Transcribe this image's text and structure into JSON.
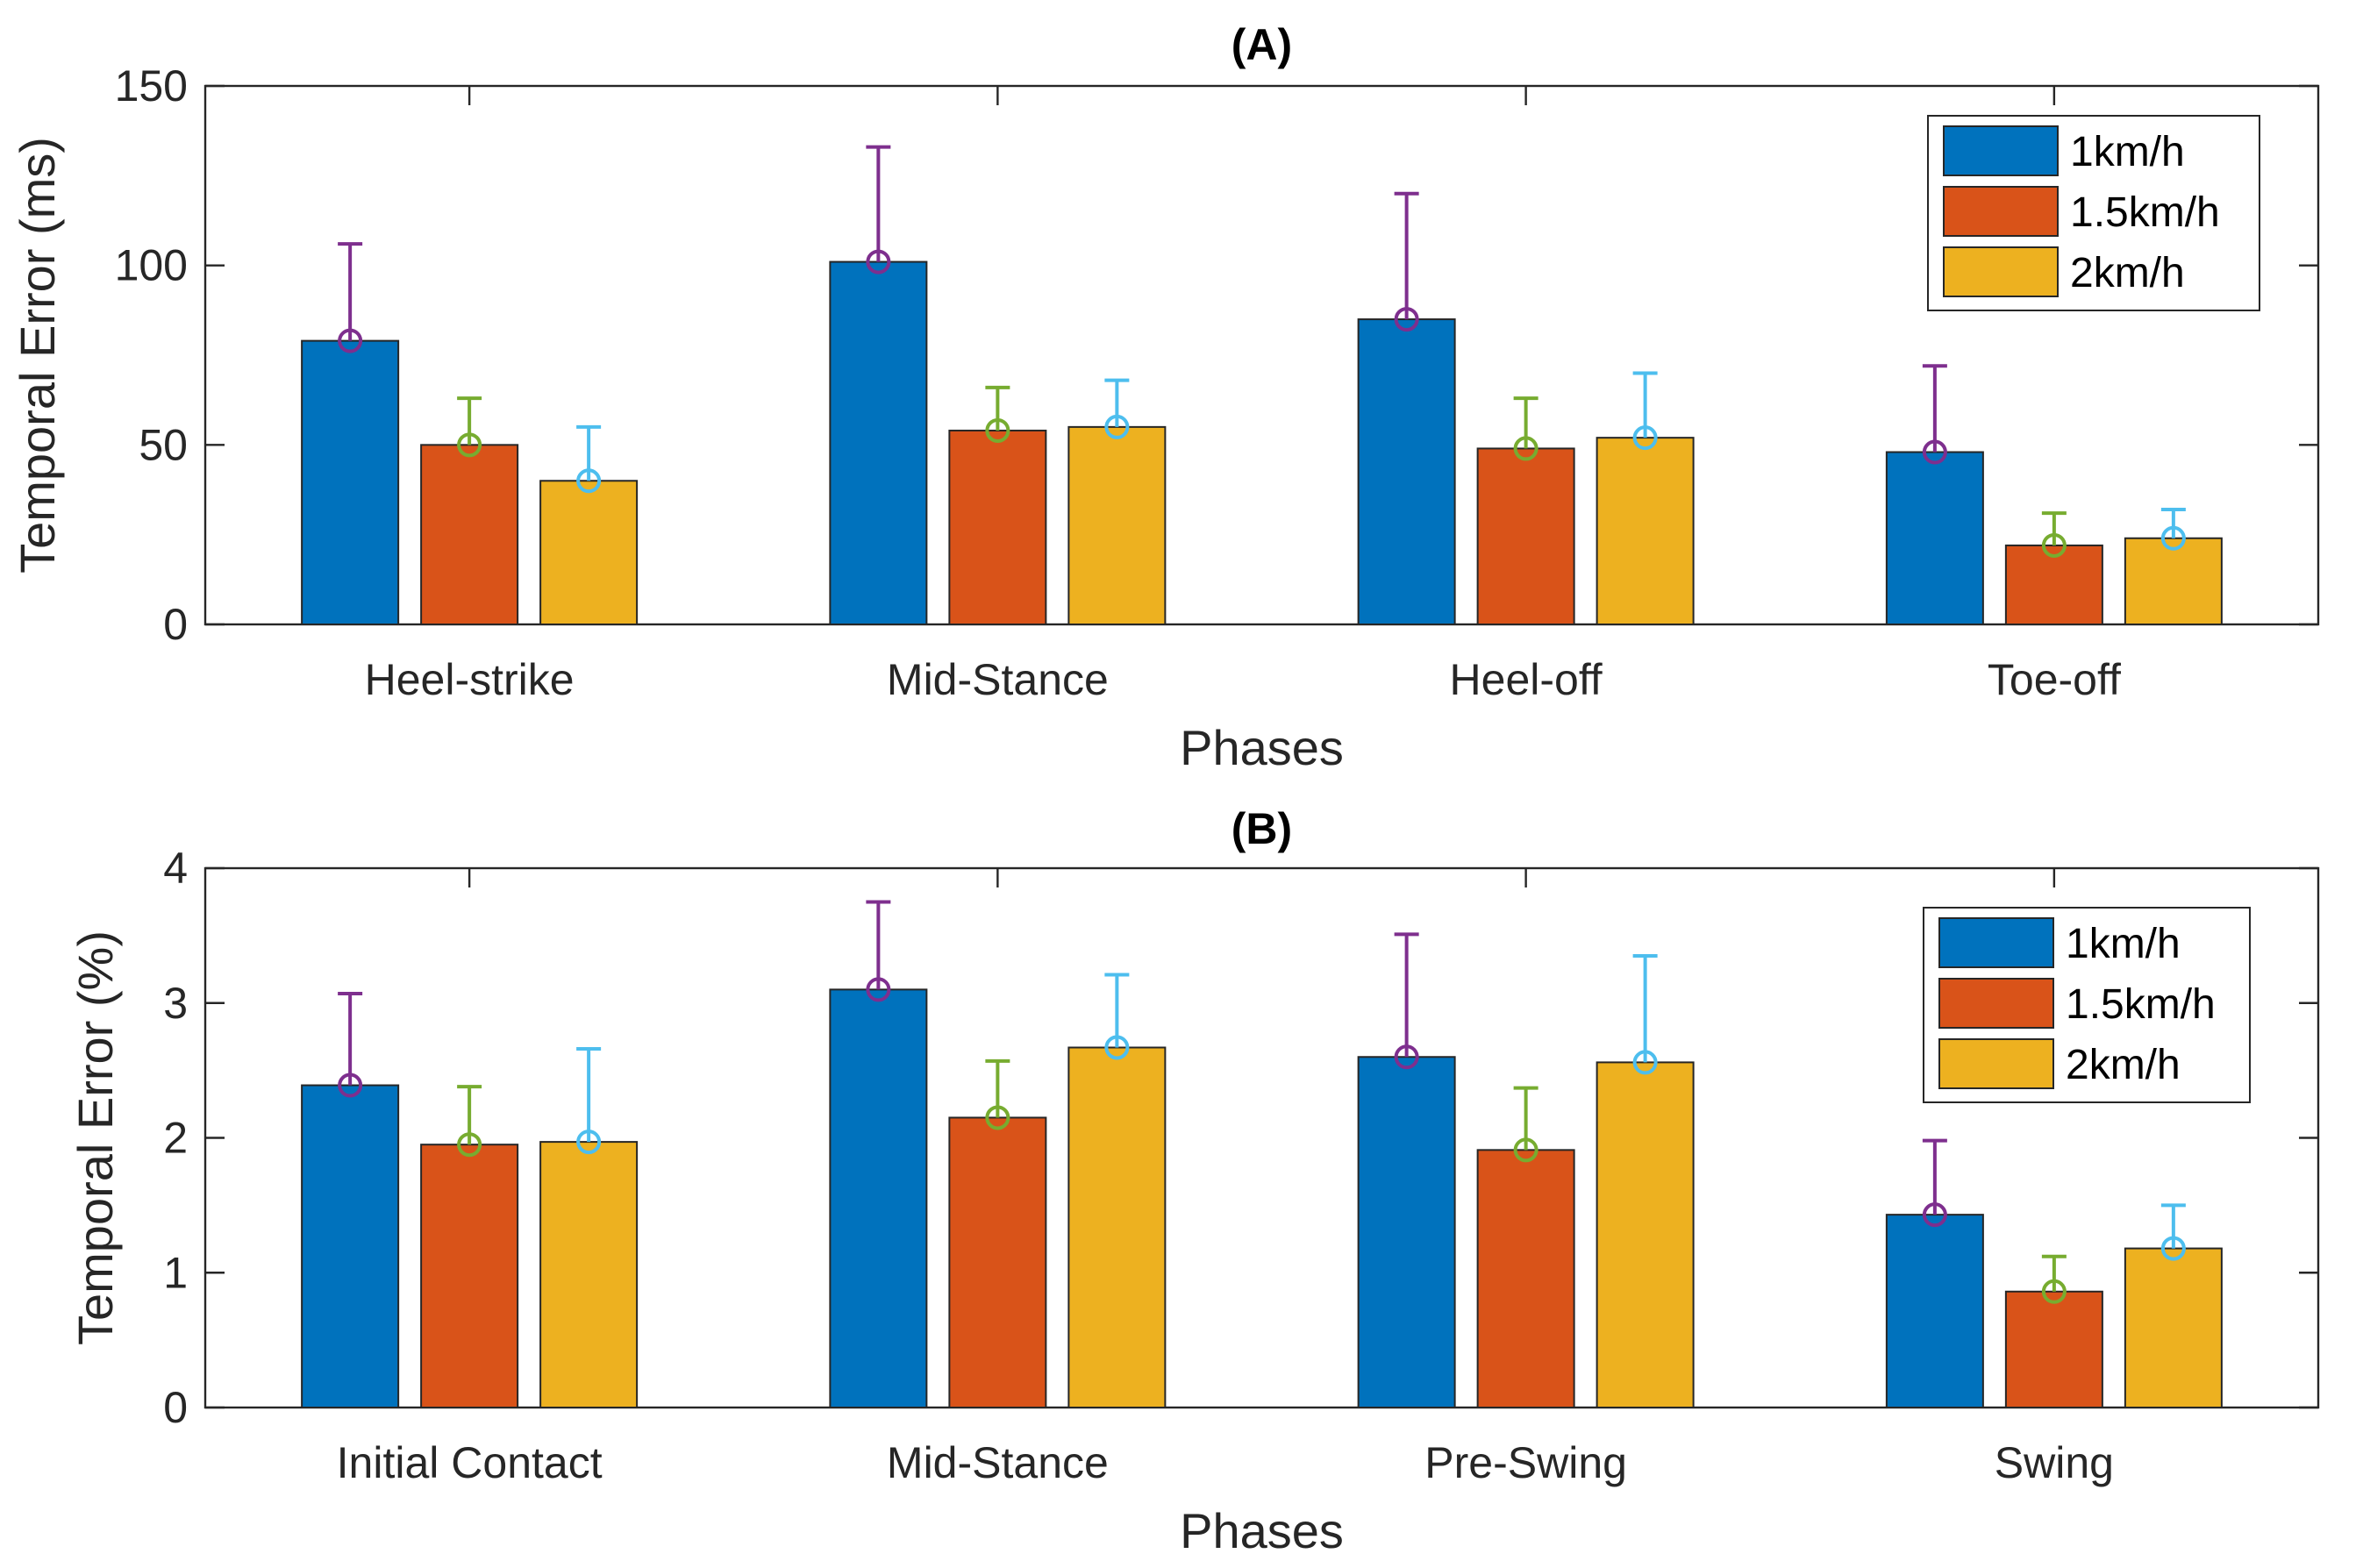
{
  "chart_data": [
    {
      "type": "bar",
      "title": "(A)",
      "xlabel": "Phases",
      "ylabel": "Temporal Error (ms)",
      "ylim": [
        0,
        150
      ],
      "yticks": [
        0,
        50,
        100,
        150
      ],
      "categories": [
        "Heel-strike",
        "Mid-Stance",
        "Heel-off",
        "Toe-off"
      ],
      "legend_position": "top-right",
      "series": [
        {
          "name": "1km/h",
          "color": "#0072BD",
          "error_color": "#7E2F8E",
          "values": [
            79,
            101,
            85,
            48
          ],
          "errors": [
            27,
            32,
            35,
            24
          ]
        },
        {
          "name": "1.5km/h",
          "color": "#D95319",
          "error_color": "#77AC30",
          "values": [
            50,
            54,
            49,
            22
          ],
          "errors": [
            13,
            12,
            14,
            9
          ]
        },
        {
          "name": "2km/h",
          "color": "#EDB120",
          "error_color": "#4DBEEE",
          "values": [
            40,
            55,
            52,
            24
          ],
          "errors": [
            15,
            13,
            18,
            8
          ]
        }
      ]
    },
    {
      "type": "bar",
      "title": "(B)",
      "xlabel": "Phases",
      "ylabel": "Temporal Error (%)",
      "ylim": [
        0,
        4
      ],
      "yticks": [
        0,
        1,
        2,
        3,
        4
      ],
      "categories": [
        "Initial Contact",
        "Mid-Stance",
        "Pre-Swing",
        "Swing"
      ],
      "legend_position": "right",
      "series": [
        {
          "name": "1km/h",
          "color": "#0072BD",
          "error_color": "#7E2F8E",
          "values": [
            2.39,
            3.1,
            2.6,
            1.43
          ],
          "errors": [
            0.68,
            0.65,
            0.91,
            0.55
          ]
        },
        {
          "name": "1.5km/h",
          "color": "#D95319",
          "error_color": "#77AC30",
          "values": [
            1.95,
            2.15,
            1.91,
            0.86
          ],
          "errors": [
            0.43,
            0.42,
            0.46,
            0.26
          ]
        },
        {
          "name": "2km/h",
          "color": "#EDB120",
          "error_color": "#4DBEEE",
          "values": [
            1.97,
            2.67,
            2.56,
            1.18
          ],
          "errors": [
            0.69,
            0.54,
            0.79,
            0.32
          ]
        }
      ]
    }
  ]
}
